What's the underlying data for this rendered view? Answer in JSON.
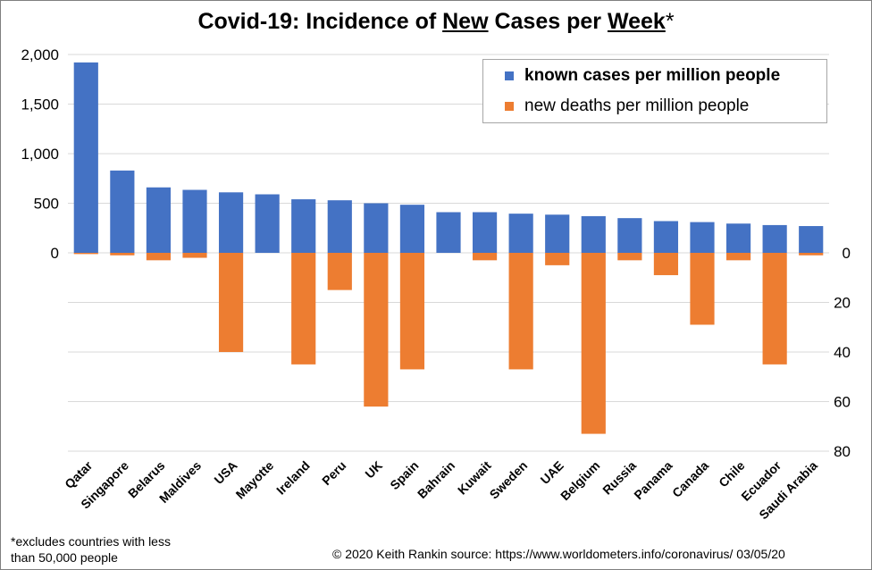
{
  "title_parts": {
    "part1": "Covid-19: Incidence of ",
    "part2": "New",
    "part3": " Cases per ",
    "part4": "Week",
    "part5": "*"
  },
  "legend": {
    "cases_label": "known cases per million people",
    "deaths_label": "new deaths per million people"
  },
  "footnote": {
    "excludes": "*excludes  countries with less than 50,000 people",
    "credit": "© 2020  Keith Rankin     source:  https://www.worldometers.info/coronavirus/     03/05/20"
  },
  "chart_data": {
    "type": "bar",
    "title": "Covid-19: Incidence of New Cases per Week*",
    "categories": [
      "Qatar",
      "Singapore",
      "Belarus",
      "Maldives",
      "USA",
      "Mayotte",
      "Ireland",
      "Peru",
      "UK",
      "Spain",
      "Bahrain",
      "Kuwait",
      "Sweden",
      "UAE",
      "Belgium",
      "Russia",
      "Panama",
      "Canada",
      "Chile",
      "Ecuador",
      "Saudi Arabia"
    ],
    "series": [
      {
        "name": "known cases per million people",
        "axis": "left",
        "color": "#4472c4",
        "values": [
          1920,
          830,
          660,
          635,
          610,
          590,
          540,
          530,
          500,
          485,
          410,
          410,
          395,
          385,
          370,
          350,
          320,
          310,
          295,
          280,
          270
        ]
      },
      {
        "name": "new deaths per million people",
        "axis": "right",
        "color": "#ed7d31",
        "values": [
          0.5,
          1,
          3,
          2,
          40,
          0,
          45,
          15,
          62,
          47,
          0,
          3,
          47,
          5,
          73,
          3,
          9,
          29,
          3,
          45,
          1
        ]
      }
    ],
    "y_left": {
      "ticks": [
        "0",
        "500",
        "1,000",
        "1,500",
        "2,000"
      ],
      "tick_values": [
        0,
        500,
        1000,
        1500,
        2000
      ],
      "range": [
        0,
        2000
      ]
    },
    "y_right": {
      "ticks": [
        "0",
        "20",
        "40",
        "60",
        "80"
      ],
      "tick_values": [
        0,
        20,
        40,
        60,
        80
      ],
      "range": [
        0,
        80
      ],
      "inverted": true
    },
    "grid": true,
    "legend_position": "top-right"
  }
}
